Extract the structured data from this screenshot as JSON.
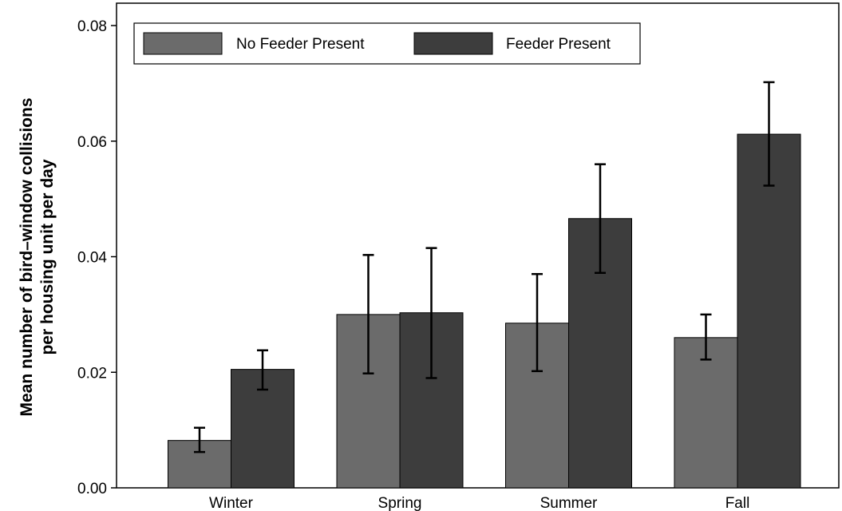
{
  "chart_data": {
    "type": "bar",
    "categories": [
      "Winter",
      "Spring",
      "Summer",
      "Fall"
    ],
    "series": [
      {
        "name": "No Feeder Present",
        "color": "#6b6b6b",
        "values": [
          0.0082,
          0.03,
          0.0285,
          0.026
        ],
        "error_low": [
          0.0062,
          0.0198,
          0.0202,
          0.0222
        ],
        "error_high": [
          0.0104,
          0.0403,
          0.037,
          0.03
        ]
      },
      {
        "name": "Feeder Present",
        "color": "#3d3d3d",
        "values": [
          0.0205,
          0.0303,
          0.0466,
          0.0612
        ],
        "error_low": [
          0.017,
          0.019,
          0.0372,
          0.0523
        ],
        "error_high": [
          0.0238,
          0.0415,
          0.056,
          0.0702
        ]
      }
    ],
    "ylabel_lines": [
      "Mean number of bird–window collisions",
      "per housing unit per day"
    ],
    "ylim": [
      0,
      0.08
    ],
    "yticks": [
      "0.00",
      "0.02",
      "0.04",
      "0.06",
      "0.08"
    ],
    "ytick_values": [
      0,
      0.02,
      0.04,
      0.06,
      0.08
    ],
    "legend_position": "top-left",
    "grid": false
  }
}
